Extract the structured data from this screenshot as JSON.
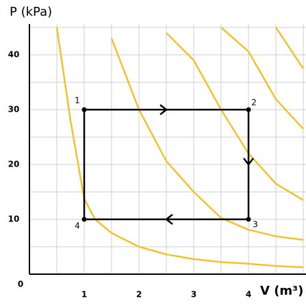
{
  "chart_data": {
    "type": "pv",
    "x_label": "V (m³)",
    "y_label": "P (kPa)",
    "xlim": [
      0,
      5
    ],
    "ylim": [
      0,
      45
    ],
    "xticks": [
      0,
      1,
      2,
      3,
      4
    ],
    "yticks": [
      10,
      20,
      30,
      40
    ],
    "grid": true,
    "x": [
      0.5,
      0.75,
      1,
      1.2,
      1.5,
      2,
      2.5,
      3,
      3.5,
      4,
      4.5,
      5
    ],
    "series": [
      {
        "color": "#f2c12e",
        "values": [
          45,
          28,
          13.75,
          10,
          7.5,
          5,
          3.6,
          2.75,
          2.2,
          1.9,
          1.5,
          1.25
        ]
      },
      {
        "color": "#f2c12e",
        "values": [
          null,
          null,
          null,
          null,
          43,
          30,
          20.6,
          15,
          10.25,
          8.1,
          6.9,
          6.25
        ]
      },
      {
        "color": "#f2c12e",
        "values": [
          null,
          null,
          null,
          null,
          null,
          null,
          44,
          39,
          30,
          22,
          16.5,
          13.5
        ]
      },
      {
        "color": "#f2c12e",
        "values": [
          null,
          null,
          null,
          null,
          null,
          null,
          null,
          null,
          45,
          40.6,
          31.9,
          26.5
        ]
      },
      {
        "color": "#f2c12e",
        "values": [
          null,
          null,
          null,
          null,
          null,
          null,
          null,
          null,
          null,
          null,
          45,
          37.5
        ]
      }
    ],
    "cycle": {
      "color": "#000000",
      "points": [
        {
          "label": "1",
          "x": 1,
          "y": 30
        },
        {
          "label": "2",
          "x": 4,
          "y": 30
        },
        {
          "label": "3",
          "x": 4,
          "y": 10
        },
        {
          "label": "4",
          "x": 1,
          "y": 10
        }
      ]
    }
  }
}
